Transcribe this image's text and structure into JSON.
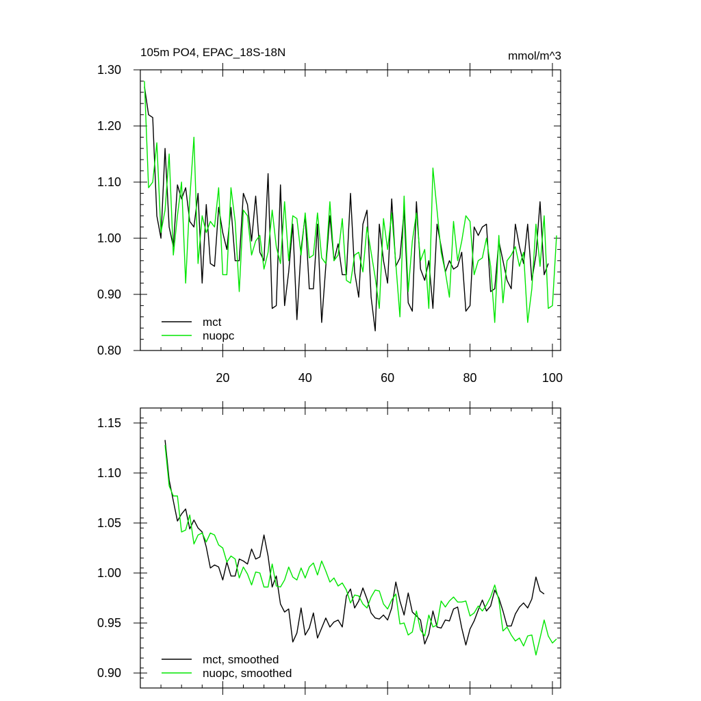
{
  "title_left": "105m PO4, EPAC_18S-18N",
  "title_right": "mmol/m^3",
  "colors": {
    "mct": "#000000",
    "nuopc": "#00e600"
  },
  "chart_data": [
    {
      "type": "line",
      "panel": "top",
      "xlim": [
        0,
        102
      ],
      "ylim": [
        0.8,
        1.3
      ],
      "yticks": [
        "0.80",
        "0.90",
        "1.00",
        "1.10",
        "1.20",
        "1.30"
      ],
      "ytick_values": [
        0.8,
        0.9,
        1.0,
        1.1,
        1.2,
        1.3
      ],
      "xticks": [
        "20",
        "40",
        "60",
        "80",
        "100"
      ],
      "xtick_values": [
        20,
        40,
        60,
        80,
        100
      ],
      "legend": [
        "mct",
        "nuopc"
      ],
      "x_start": 1,
      "series": [
        {
          "name": "mct",
          "color_key": "mct",
          "values": [
            1.27,
            1.22,
            1.215,
            1.04,
            1.0,
            1.16,
            1.02,
            0.985,
            1.095,
            1.07,
            1.09,
            1.03,
            1.02,
            1.08,
            0.92,
            1.06,
            0.955,
            0.95,
            1.055,
            1.01,
            0.98,
            1.055,
            0.96,
            0.96,
            1.08,
            1.06,
            0.995,
            1.075,
            0.975,
            0.96,
            1.115,
            0.875,
            0.88,
            1.095,
            0.88,
            0.94,
            1.025,
            0.855,
            0.98,
            1.04,
            0.91,
            0.91,
            1.025,
            0.85,
            0.95,
            1.04,
            0.96,
            0.99,
            0.935,
            0.935,
            1.08,
            0.94,
            0.895,
            1.025,
            1.05,
            0.895,
            0.835,
            1.025,
            0.96,
            0.92,
            1.07,
            0.95,
            0.965,
            1.05,
            0.885,
            0.87,
            1.065,
            0.945,
            0.925,
            0.96,
            0.875,
            1.025,
            0.985,
            0.94,
            0.96,
            0.945,
            0.95,
            0.975,
            0.87,
            0.88,
            1.02,
            1.005,
            1.02,
            1.025,
            0.905,
            0.91,
            0.995,
            0.96,
            0.925,
            0.91,
            1.025,
            0.985,
            0.955,
            1.025,
            0.925,
            0.97,
            1.065,
            0.935,
            0.955
          ]
        },
        {
          "name": "nuopc",
          "color_key": "nuopc",
          "values": [
            1.28,
            1.09,
            1.1,
            1.17,
            1.01,
            1.05,
            1.15,
            0.97,
            1.04,
            1.1,
            0.92,
            1.07,
            1.18,
            0.955,
            1.04,
            1.01,
            1.03,
            1.02,
            1.09,
            0.935,
            0.935,
            1.09,
            1.03,
            0.905,
            1.05,
            1.04,
            0.97,
            0.995,
            1.005,
            0.945,
            0.975,
            1.05,
            0.985,
            0.955,
            1.065,
            0.96,
            1.04,
            1.035,
            0.97,
            1.045,
            0.965,
            0.97,
            1.045,
            0.965,
            0.955,
            1.065,
            0.96,
            0.97,
            1.035,
            0.925,
            0.92,
            0.97,
            0.975,
            0.94,
            1.02,
            0.975,
            0.93,
            0.875,
            1.035,
            0.98,
            1.045,
            0.955,
            0.86,
            1.075,
            0.905,
            0.995,
            1.045,
            0.96,
            0.98,
            0.875,
            1.125,
            1.05,
            0.975,
            0.94,
            0.895,
            1.03,
            0.96,
            0.995,
            1.04,
            1.03,
            0.935,
            0.96,
            0.965,
            1.0,
            0.95,
            0.85,
            1.005,
            0.885,
            0.96,
            0.97,
            0.985,
            0.95,
            0.975,
            0.85,
            0.91,
            1.025,
            0.95,
            1.04,
            0.875,
            0.88,
            1.005
          ]
        }
      ]
    },
    {
      "type": "line",
      "panel": "bottom",
      "xlim": [
        0,
        102
      ],
      "ylim": [
        0.885,
        1.165
      ],
      "yticks": [
        "0.90",
        "0.95",
        "1.00",
        "1.05",
        "1.10",
        "1.15"
      ],
      "ytick_values": [
        0.9,
        0.95,
        1.0,
        1.05,
        1.1,
        1.15
      ],
      "xticks": [],
      "xtick_values": [
        20,
        40,
        60,
        80,
        100
      ],
      "legend": [
        "mct, smoothed",
        "nuopc, smoothed"
      ],
      "x_start": 6,
      "series": [
        {
          "name": "mct, smoothed",
          "color_key": "mct",
          "values": [
            1.133,
            1.093,
            1.072,
            1.052,
            1.059,
            1.064,
            1.044,
            1.053,
            1.045,
            1.041,
            1.026,
            1.005,
            1.008,
            1.006,
            0.993,
            1.011,
            0.997,
            0.997,
            1.014,
            1.012,
            1.009,
            1.024,
            1.014,
            1.016,
            1.038,
            1.017,
            0.986,
            0.997,
            0.969,
            0.961,
            0.964,
            0.931,
            0.94,
            0.965,
            0.938,
            0.945,
            0.96,
            0.935,
            0.945,
            0.955,
            0.946,
            0.951,
            0.953,
            0.946,
            0.977,
            0.984,
            0.965,
            0.972,
            0.985,
            0.974,
            0.96,
            0.955,
            0.954,
            0.958,
            0.953,
            0.965,
            0.991,
            0.972,
            0.958,
            0.98,
            0.961,
            0.957,
            0.953,
            0.929,
            0.939,
            0.962,
            0.946,
            0.945,
            0.953,
            0.952,
            0.964,
            0.966,
            0.945,
            0.928,
            0.944,
            0.952,
            0.963,
            0.973,
            0.962,
            0.967,
            0.983,
            0.975,
            0.962,
            0.947,
            0.947,
            0.959,
            0.966,
            0.97,
            0.965,
            0.974,
            0.996,
            0.982,
            0.979
          ]
        },
        {
          "name": "nuopc, smoothed",
          "color_key": "nuopc",
          "values": [
            1.128,
            1.087,
            1.077,
            1.077,
            1.041,
            1.043,
            1.058,
            1.029,
            1.038,
            1.04,
            1.031,
            1.04,
            1.038,
            1.028,
            1.025,
            1.011,
            1.017,
            1.014,
            0.995,
            1.006,
            0.999,
            0.988,
            1.001,
            1.0,
            0.986,
            0.986,
            1.009,
            0.987,
            0.986,
            0.993,
            1.006,
            0.996,
            0.993,
            1.005,
            0.995,
            1.006,
            1.01,
            0.998,
            1.012,
            1.002,
            0.991,
            0.995,
            0.987,
            0.99,
            0.983,
            0.97,
            0.978,
            0.977,
            0.969,
            0.965,
            0.976,
            0.983,
            0.982,
            0.969,
            0.964,
            0.973,
            0.979,
            0.949,
            0.95,
            0.938,
            0.941,
            0.962,
            0.943,
            0.937,
            0.958,
            0.946,
            0.948,
            0.972,
            0.966,
            0.972,
            0.976,
            0.971,
            0.971,
            0.972,
            0.957,
            0.96,
            0.967,
            0.962,
            0.968,
            0.976,
            0.988,
            0.973,
            0.942,
            0.946,
            0.938,
            0.932,
            0.935,
            0.927,
            0.937,
            0.938,
            0.918,
            0.935,
            0.953,
            0.937,
            0.93,
            0.934
          ]
        }
      ]
    }
  ]
}
